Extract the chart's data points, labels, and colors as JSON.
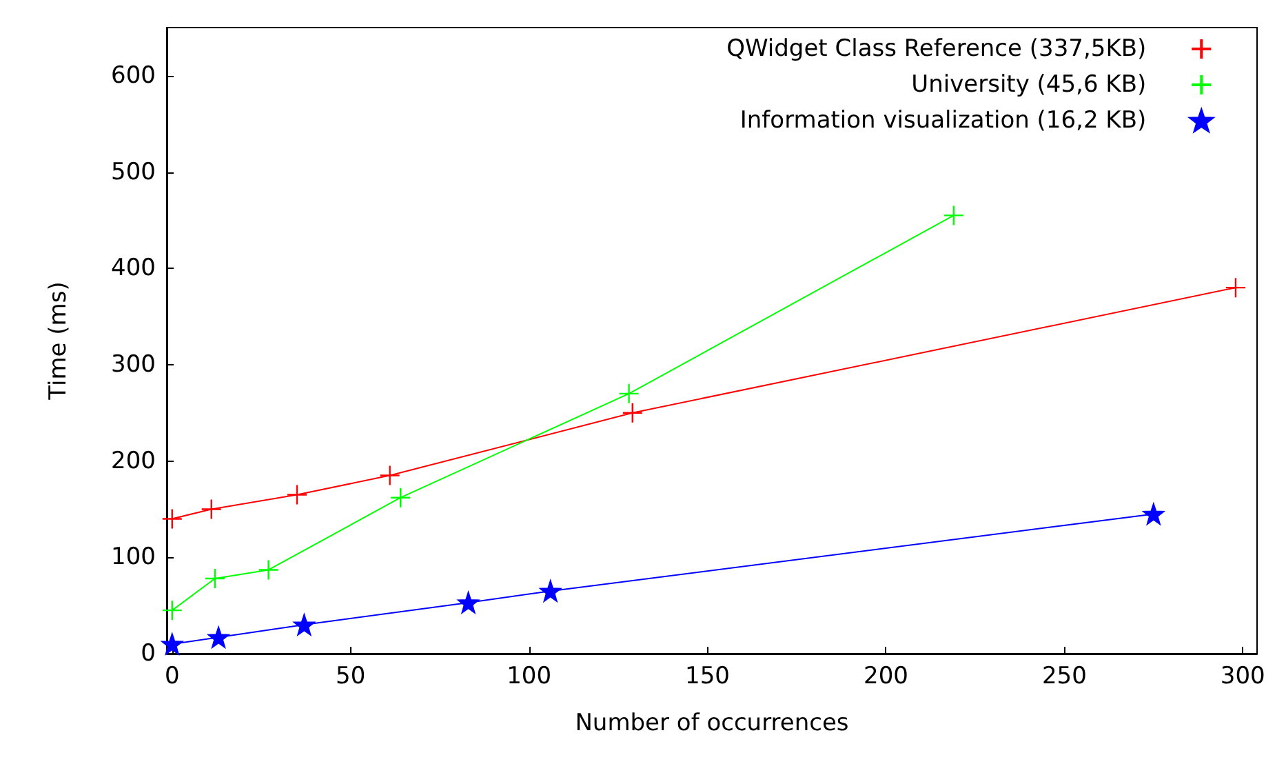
{
  "chart_data": {
    "type": "line",
    "xlabel": "Number of occurrences",
    "ylabel": "Time (ms)",
    "xlim": [
      -1.5,
      304
    ],
    "xticks": [
      0,
      50,
      100,
      150,
      200,
      250,
      300
    ],
    "ylim": [
      0,
      650
    ],
    "yticks": [
      0,
      100,
      200,
      300,
      400,
      500,
      600
    ],
    "grid": false,
    "legend": "top right",
    "line_style": "solid",
    "series": [
      {
        "name": "QWidget Class Reference (337,5KB)",
        "color": "#ff0000",
        "marker": "cross",
        "x": [
          0,
          11,
          35,
          61,
          129,
          298
        ],
        "values": [
          140,
          150,
          165,
          185,
          250,
          380
        ]
      },
      {
        "name": "University (45,6 KB)",
        "color": "#00ff00",
        "marker": "cross",
        "x": [
          0,
          12,
          27,
          64,
          128,
          219
        ],
        "values": [
          45,
          78,
          87,
          162,
          270,
          455
        ]
      },
      {
        "name": "Information visualization (16,2 KB)",
        "color": "#0000ff",
        "marker": "star",
        "x": [
          0,
          13,
          37,
          83,
          106,
          275
        ],
        "values": [
          10,
          17,
          30,
          53,
          65,
          145
        ]
      }
    ]
  }
}
